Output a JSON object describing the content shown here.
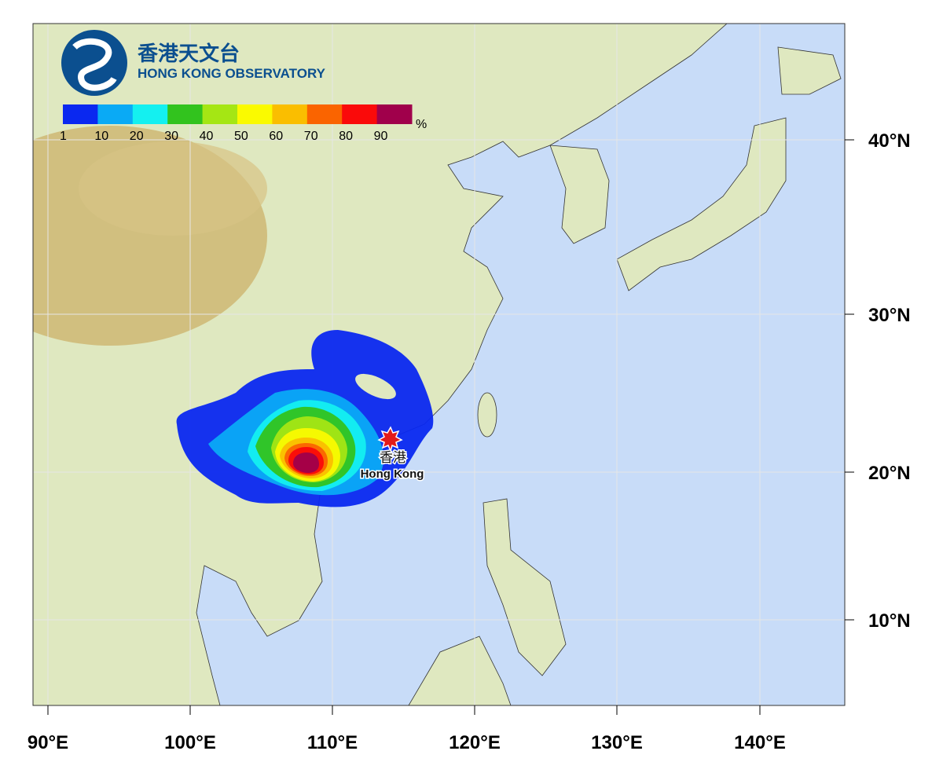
{
  "logo": {
    "chinese": "香港天文台",
    "english": "HONG KONG OBSERVATORY"
  },
  "colorbar": {
    "unit": "%",
    "labels": [
      1,
      10,
      20,
      30,
      40,
      50,
      60,
      70,
      80,
      90
    ],
    "colors": [
      "#0a28f0",
      "#0aaaf5",
      "#14f0f0",
      "#32c31e",
      "#a5e614",
      "#fafa00",
      "#fabe00",
      "#fa6400",
      "#fa0a0a",
      "#a0004b"
    ]
  },
  "axes": {
    "lon_labels": [
      "90°E",
      "100°E",
      "110°E",
      "120°E",
      "130°E",
      "140°E"
    ],
    "lat_labels": [
      "40°N",
      "30°N",
      "20°N",
      "10°N"
    ]
  },
  "marker": {
    "chinese": "香港",
    "english": "Hong Kong"
  }
}
